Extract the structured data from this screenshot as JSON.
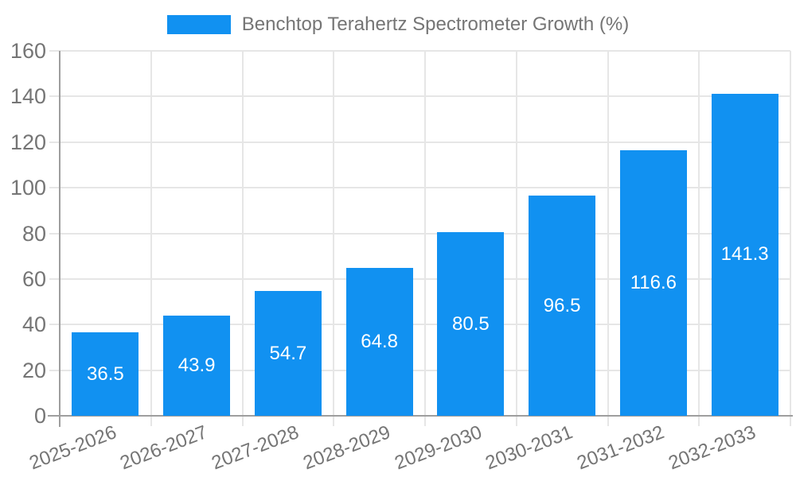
{
  "legend": {
    "label": "Benchtop Terahertz Spectrometer Growth (%)"
  },
  "chart_data": {
    "type": "bar",
    "title": "Benchtop Terahertz Spectrometer Growth (%)",
    "categories": [
      "2025-2026",
      "2026-2027",
      "2027-2028",
      "2028-2029",
      "2029-2030",
      "2030-2031",
      "2031-2032",
      "2032-2033"
    ],
    "values": [
      36.5,
      43.9,
      54.7,
      64.8,
      80.5,
      96.5,
      116.6,
      141.3
    ],
    "value_labels": [
      "36.5",
      "43.9",
      "54.7",
      "64.8",
      "80.5",
      "96.5",
      "116.6",
      "141.3"
    ],
    "xlabel": "",
    "ylabel": "",
    "ylim": [
      0,
      160
    ],
    "ytick_step": 20,
    "yticks": [
      0,
      20,
      40,
      60,
      80,
      100,
      120,
      140,
      160
    ],
    "grid": true,
    "legend_position": "top-center",
    "value_label_position": "center-of-bar",
    "bar_color": "#1191f1",
    "value_label_color": "#ffffff",
    "axis_label_color": "#757575",
    "grid_color": "#e6e6e6",
    "axis_line_color": "#9e9e9e",
    "background_color": "#ffffff"
  }
}
